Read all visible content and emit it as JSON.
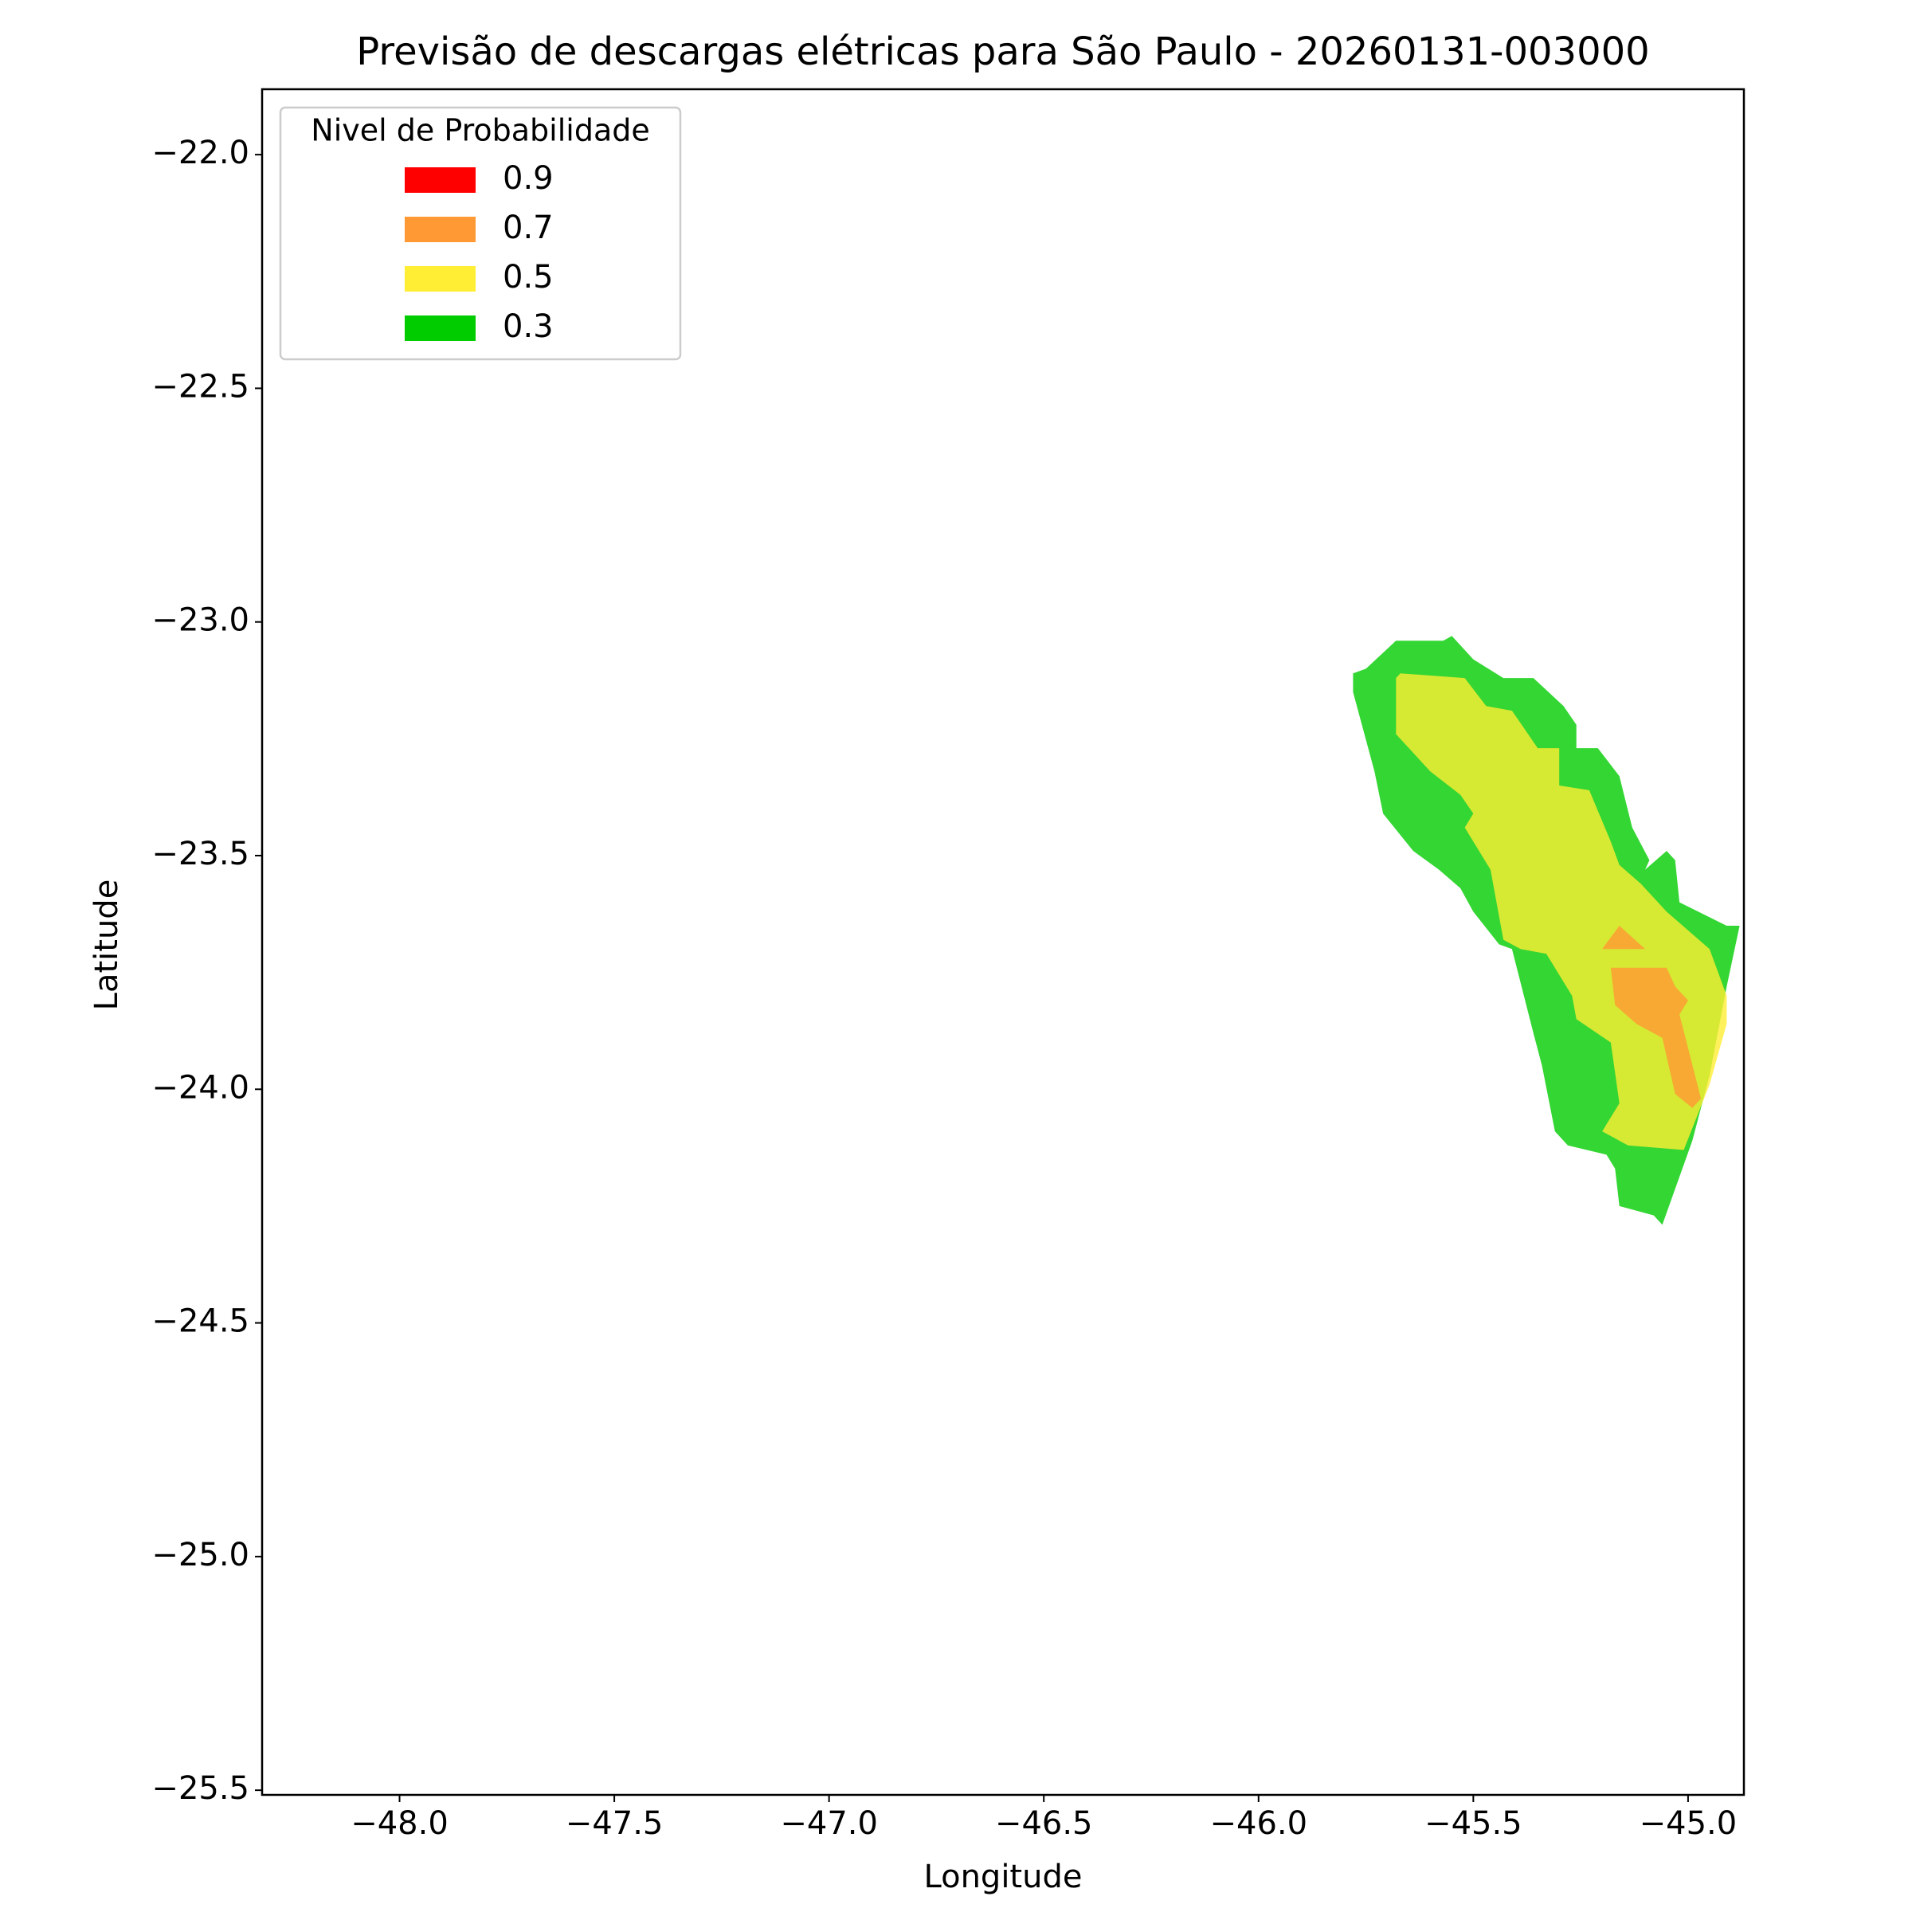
{
  "chart_data": {
    "type": "contour",
    "title": "Previsão de descargas elétricas para São Paulo - 20260131-003000",
    "x_label": "Longitude",
    "y_label": "Latitude",
    "legend_title": "Nivel de Probabilidade",
    "legend": "upper left",
    "alpha": 0.8,
    "xlim": [
      -48.32,
      -44.87
    ],
    "ylim": [
      -25.51,
      -21.86
    ],
    "xticks": [
      {
        "value": -48.0,
        "label": "−48.0"
      },
      {
        "value": -47.5,
        "label": "−47.5"
      },
      {
        "value": -47.0,
        "label": "−47.0"
      },
      {
        "value": -46.5,
        "label": "−46.5"
      },
      {
        "value": -46.0,
        "label": "−46.0"
      },
      {
        "value": -45.5,
        "label": "−45.5"
      },
      {
        "value": -45.0,
        "label": "−45.0"
      }
    ],
    "yticks": [
      {
        "value": -22.0,
        "label": "−22.0"
      },
      {
        "value": -22.5,
        "label": "−22.5"
      },
      {
        "value": -23.0,
        "label": "−23.0"
      },
      {
        "value": -23.5,
        "label": "−23.5"
      },
      {
        "value": -24.0,
        "label": "−24.0"
      },
      {
        "value": -24.5,
        "label": "−24.5"
      },
      {
        "value": -25.0,
        "label": "−25.0"
      },
      {
        "value": -25.5,
        "label": "−25.5"
      }
    ],
    "series": [
      {
        "name": "0.9",
        "color": "#ff0000",
        "polygons": []
      },
      {
        "name": "0.7",
        "color": "#ff9933",
        "polygons": [
          {
            "x": [
              -45.18,
              -45.05,
              -45.03,
              -45.0,
              -45.02,
              -44.97,
              -44.99,
              -45.03,
              -45.06,
              -45.12,
              -45.17
            ],
            "y": [
              -23.74,
              -23.74,
              -23.78,
              -23.81,
              -23.84,
              -24.02,
              -24.04,
              -24.01,
              -23.89,
              -23.86,
              -23.82
            ]
          },
          {
            "x": [
              -45.2,
              -45.16,
              -45.1
            ],
            "y": [
              -23.7,
              -23.65,
              -23.7
            ]
          }
        ]
      },
      {
        "name": "0.5",
        "color": "#ffee33",
        "polygons": [
          {
            "x": [
              -45.68,
              -45.67,
              -45.52,
              -45.47,
              -45.41,
              -45.35,
              -45.3,
              -45.3,
              -45.23,
              -45.18,
              -45.16,
              -45.11,
              -45.05,
              -44.95,
              -44.91,
              -44.91,
              -44.95,
              -45.01,
              -45.14,
              -45.2,
              -45.16,
              -45.18,
              -45.26,
              -45.27,
              -45.33,
              -45.39,
              -45.43,
              -45.46,
              -45.52,
              -45.5,
              -45.53,
              -45.6,
              -45.68
            ],
            "y": [
              -23.12,
              -23.11,
              -23.12,
              -23.18,
              -23.19,
              -23.27,
              -23.27,
              -23.35,
              -23.36,
              -23.47,
              -23.52,
              -23.56,
              -23.62,
              -23.7,
              -23.8,
              -23.86,
              -23.99,
              -24.13,
              -24.12,
              -24.09,
              -24.03,
              -23.9,
              -23.85,
              -23.8,
              -23.71,
              -23.7,
              -23.68,
              -23.53,
              -23.44,
              -23.41,
              -23.37,
              -23.32,
              -23.24
            ]
          }
        ]
      },
      {
        "name": "0.3",
        "color": "#00cc00",
        "polygons": [
          {
            "x": [
              -45.78,
              -45.75,
              -45.68,
              -45.57,
              -45.55,
              -45.5,
              -45.43,
              -45.36,
              -45.29,
              -45.26,
              -45.26,
              -45.21,
              -45.16,
              -45.13,
              -45.09,
              -45.1,
              -45.05,
              -45.03,
              -45.02,
              -44.91,
              -44.88,
              -44.91,
              -44.95,
              -44.99,
              -45.06,
              -45.08,
              -45.16,
              -45.17,
              -45.19,
              -45.28,
              -45.31,
              -45.34,
              -45.36,
              -45.41,
              -45.44,
              -45.5,
              -45.53,
              -45.58,
              -45.64,
              -45.71,
              -45.73,
              -45.78
            ],
            "y": [
              -23.11,
              -23.1,
              -23.04,
              -23.04,
              -23.03,
              -23.08,
              -23.12,
              -23.12,
              -23.18,
              -23.22,
              -23.27,
              -23.27,
              -23.33,
              -23.44,
              -23.51,
              -23.53,
              -23.49,
              -23.51,
              -23.6,
              -23.65,
              -23.65,
              -23.78,
              -23.97,
              -24.11,
              -24.29,
              -24.27,
              -24.25,
              -24.17,
              -24.14,
              -24.12,
              -24.09,
              -23.95,
              -23.88,
              -23.7,
              -23.69,
              -23.62,
              -23.57,
              -23.53,
              -23.49,
              -23.41,
              -23.32,
              -23.15
            ]
          }
        ]
      }
    ]
  }
}
